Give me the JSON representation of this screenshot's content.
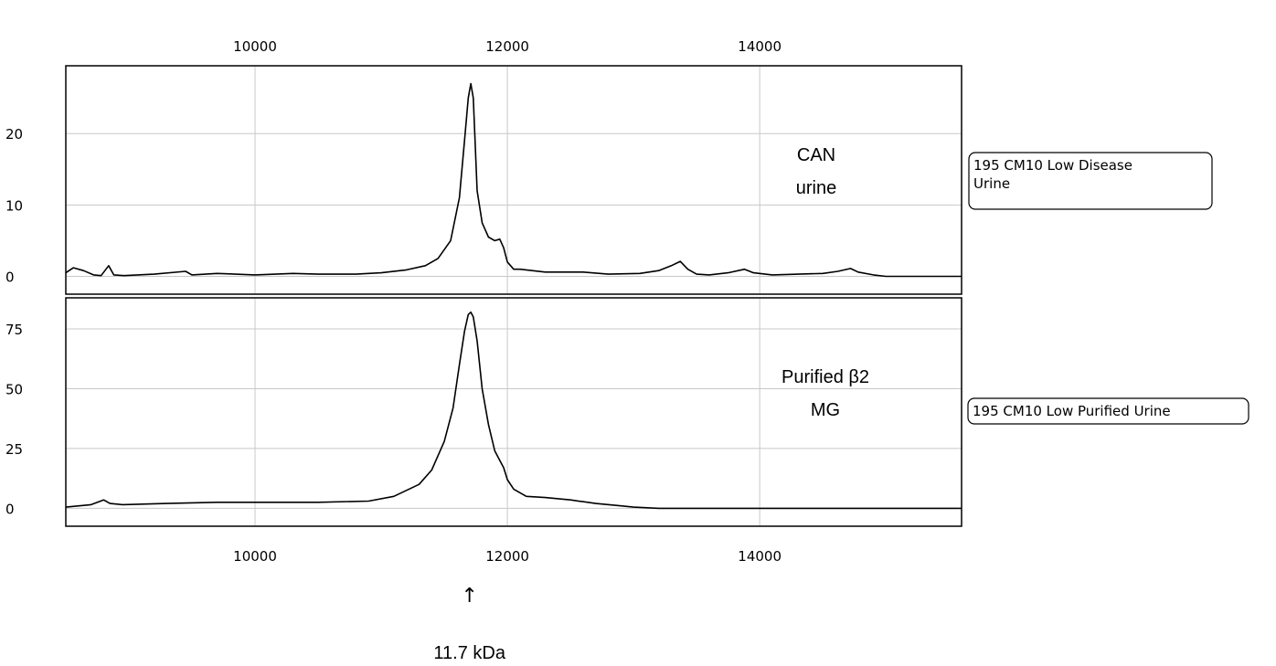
{
  "chart_data": {
    "type": "line",
    "x_axis": {
      "min": 8500,
      "max": 15600,
      "ticks": [
        10000,
        12000,
        14000
      ],
      "tick_labels": [
        "10000",
        "12000",
        "14000"
      ]
    },
    "grid": true,
    "panels": [
      {
        "series_name": "195 CM10 Low Disease Urine",
        "legend_lines": [
          "195 CM10 Low Disease",
          "Urine"
        ],
        "annotation_lines": [
          "CAN",
          "urine"
        ],
        "ylim": [
          -2.5,
          29.5
        ],
        "yticks": [
          0,
          10,
          20
        ],
        "ytick_labels": [
          "0",
          "10",
          "20"
        ],
        "x": [
          8500,
          8560,
          8640,
          8720,
          8780,
          8840,
          8880,
          8960,
          9200,
          9450,
          9500,
          9700,
          10000,
          10300,
          10500,
          10800,
          11000,
          11200,
          11350,
          11450,
          11550,
          11620,
          11660,
          11690,
          11710,
          11730,
          11760,
          11800,
          11850,
          11900,
          11940,
          11970,
          12000,
          12050,
          12100,
          12300,
          12600,
          12800,
          13050,
          13200,
          13300,
          13370,
          13430,
          13500,
          13600,
          13750,
          13880,
          13950,
          14100,
          14500,
          14620,
          14720,
          14780,
          14900,
          15000,
          15600
        ],
        "y": [
          0.5,
          1.2,
          0.8,
          0.2,
          0.1,
          1.5,
          0.2,
          0.1,
          0.3,
          0.7,
          0.2,
          0.4,
          0.2,
          0.4,
          0.3,
          0.3,
          0.5,
          0.9,
          1.5,
          2.5,
          5.0,
          11.0,
          19.0,
          25.0,
          27.0,
          25.0,
          12.0,
          7.5,
          5.5,
          5.0,
          5.2,
          4.0,
          2.0,
          1.0,
          1.0,
          0.6,
          0.6,
          0.3,
          0.4,
          0.8,
          1.5,
          2.1,
          1.0,
          0.3,
          0.2,
          0.5,
          1.0,
          0.5,
          0.2,
          0.4,
          0.7,
          1.1,
          0.6,
          0.2,
          0.0,
          0.0
        ]
      },
      {
        "series_name": "195 CM10 Low Purified Urine",
        "legend_lines": [
          "195 CM10 Low Purified Urine"
        ],
        "annotation_lines": [
          "Purified β2",
          "MG"
        ],
        "ylim": [
          -7.5,
          88
        ],
        "yticks": [
          0,
          25,
          50,
          75
        ],
        "ytick_labels": [
          "0",
          "25",
          "50",
          "75"
        ],
        "x": [
          8500,
          8700,
          8800,
          8850,
          8950,
          9300,
          9700,
          10000,
          10500,
          10900,
          11100,
          11300,
          11400,
          11500,
          11570,
          11620,
          11660,
          11690,
          11710,
          11730,
          11760,
          11800,
          11850,
          11900,
          11940,
          11970,
          12000,
          12050,
          12150,
          12300,
          12500,
          12700,
          12900,
          13000,
          13200,
          13500,
          14000,
          14500,
          15000,
          15600
        ],
        "y": [
          0.5,
          1.5,
          3.5,
          2.0,
          1.5,
          2.0,
          2.5,
          2.5,
          2.5,
          3.0,
          5.0,
          10.0,
          16.0,
          28.0,
          42.0,
          60.0,
          74.0,
          81.0,
          82.0,
          80.0,
          70.0,
          50.0,
          35.0,
          24.0,
          20.0,
          17.0,
          12.0,
          8.0,
          5.0,
          4.5,
          3.5,
          2.0,
          1.0,
          0.5,
          0.0,
          0.0,
          0.0,
          0.0,
          0.0,
          0.0
        ]
      }
    ],
    "marker": {
      "x": 11700,
      "glyph": "↑",
      "label": "11.7 kDa"
    }
  }
}
